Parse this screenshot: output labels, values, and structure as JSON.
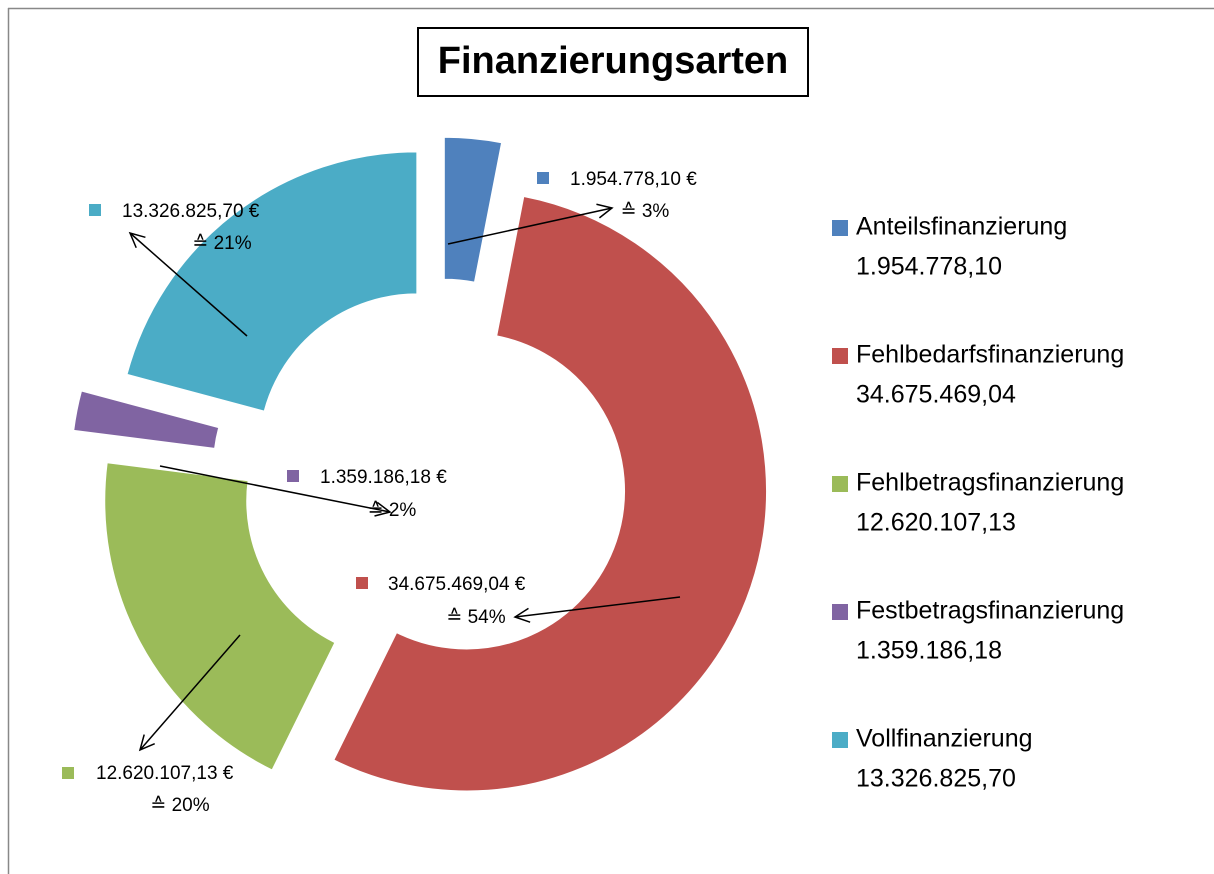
{
  "chart_data": {
    "type": "donut",
    "title": "Finanzierungsarten",
    "categories": [
      "Anteilsfinanzierung",
      "Fehlbedarfsfinanzierung",
      "Fehlbetragsfinanzierung",
      "Festbetragsfinanzierung",
      "Vollfinanzierung"
    ],
    "values": [
      1954778.1,
      34675469.04,
      12620107.13,
      1359186.18,
      13326825.7
    ],
    "value_labels": [
      "1.954.778,10 €",
      "34.675.469,04 €",
      "12.620.107,13 €",
      "1.359.186,18 €",
      "13.326.825,70 €"
    ],
    "legend_value_labels": [
      "1.954.778,10",
      "34.675.469,04",
      "12.620.107,13",
      "1.359.186,18",
      "13.326.825,70"
    ],
    "percent_labels": [
      "≙ 3%",
      "≙ 54%",
      "≙ 20%",
      "≙ 2%",
      "≙ 21%"
    ],
    "colors": [
      "#4f81bd",
      "#c0504d",
      "#9bbb59",
      "#8064a2",
      "#4bacc6"
    ],
    "legend": "right"
  }
}
